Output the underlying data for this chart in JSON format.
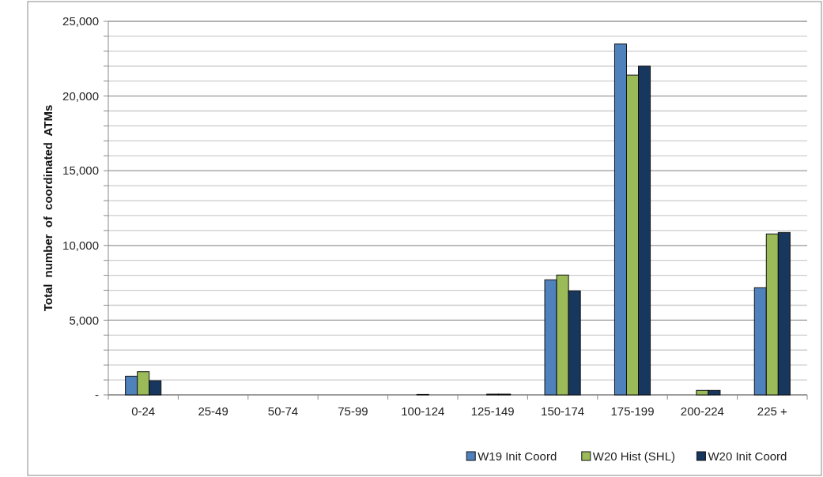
{
  "chart_data": {
    "type": "bar",
    "ylabel": "Total number of coordinated ATMs",
    "categories": [
      "0-24",
      "25-49",
      "50-74",
      "75-99",
      "100-124",
      "125-149",
      "150-174",
      "175-199",
      "200-224",
      "225 +"
    ],
    "series": [
      {
        "name": "W19 Init Coord",
        "color": "#4f81bd",
        "values": [
          1250,
          0,
          0,
          0,
          0,
          0,
          7700,
          23480,
          0,
          7170
        ]
      },
      {
        "name": "W20 Hist (SHL)",
        "color": "#9bbb59",
        "values": [
          1550,
          0,
          0,
          0,
          30,
          50,
          8020,
          21400,
          300,
          10770
        ]
      },
      {
        "name": "W20 Init Coord",
        "color": "#17375e",
        "values": [
          950,
          0,
          0,
          0,
          0,
          50,
          6960,
          22000,
          300,
          10870
        ]
      }
    ],
    "ylim": [
      0,
      25000
    ],
    "yticks": [
      {
        "value": 0,
        "label": "-"
      },
      {
        "value": 1000,
        "label": null
      },
      {
        "value": 2000,
        "label": null
      },
      {
        "value": 3000,
        "label": null
      },
      {
        "value": 4000,
        "label": null
      },
      {
        "value": 5000,
        "label": "5,000"
      },
      {
        "value": 6000,
        "label": null
      },
      {
        "value": 7000,
        "label": null
      },
      {
        "value": 8000,
        "label": null
      },
      {
        "value": 9000,
        "label": null
      },
      {
        "value": 10000,
        "label": "10,000"
      },
      {
        "value": 11000,
        "label": null
      },
      {
        "value": 12000,
        "label": null
      },
      {
        "value": 13000,
        "label": null
      },
      {
        "value": 14000,
        "label": null
      },
      {
        "value": 15000,
        "label": "15,000"
      },
      {
        "value": 16000,
        "label": null
      },
      {
        "value": 17000,
        "label": null
      },
      {
        "value": 18000,
        "label": null
      },
      {
        "value": 19000,
        "label": null
      },
      {
        "value": 20000,
        "label": "20,000"
      },
      {
        "value": 21000,
        "label": null
      },
      {
        "value": 22000,
        "label": null
      },
      {
        "value": 23000,
        "label": null
      },
      {
        "value": 24000,
        "label": null
      },
      {
        "value": 25000,
        "label": "25,000"
      }
    ],
    "grid": true,
    "legend": "bottom right"
  }
}
